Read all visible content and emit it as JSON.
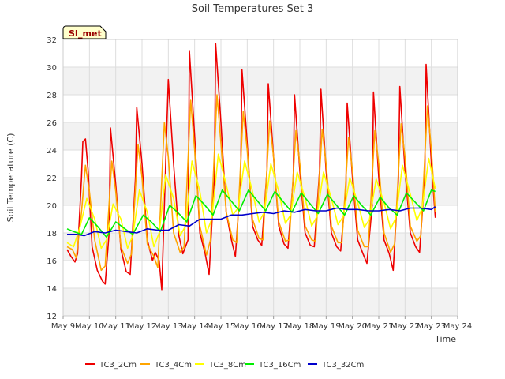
{
  "chart_data": {
    "type": "line",
    "title": "Soil Temperatures Set 3",
    "xlabel": "Time",
    "ylabel": "Soil Temperature (C)",
    "ylim": [
      12,
      32
    ],
    "yticks": [
      12,
      14,
      16,
      18,
      20,
      22,
      24,
      26,
      28,
      30,
      32
    ],
    "xlim": [
      9,
      24
    ],
    "xticks": [
      9,
      10,
      11,
      12,
      13,
      14,
      15,
      16,
      17,
      18,
      19,
      20,
      21,
      22,
      23,
      24
    ],
    "xtick_labels": [
      "May 9",
      "May 10",
      "May 11",
      "May 12",
      "May 13",
      "May 14",
      "May 15",
      "May 16",
      "May 17",
      "May 18",
      "May 19",
      "May 20",
      "May 21",
      "May 22",
      "May 23",
      "May 24"
    ],
    "grid": true,
    "banded_background": true,
    "legend_position": "bottom",
    "site_badge": "SI_met",
    "colors": {
      "TC3_2Cm": "#ee0000",
      "TC3_4Cm": "#ffa500",
      "TC3_8Cm": "#ffff00",
      "TC3_16Cm": "#00ee00",
      "TC3_32Cm": "#0000cc"
    },
    "series": [
      {
        "name": "TC3_2Cm",
        "x": [
          9.15,
          9.3,
          9.45,
          9.55,
          9.7,
          9.75,
          9.85,
          9.95,
          10.1,
          10.3,
          10.5,
          10.6,
          10.75,
          10.8,
          11.0,
          11.2,
          11.4,
          11.55,
          11.75,
          11.8,
          12.0,
          12.2,
          12.4,
          12.5,
          12.65,
          12.75,
          13.0,
          13.2,
          13.4,
          13.55,
          13.75,
          13.8,
          14.0,
          14.2,
          14.4,
          14.55,
          14.75,
          14.8,
          15.0,
          15.2,
          15.4,
          15.55,
          15.75,
          15.8,
          16.0,
          16.2,
          16.4,
          16.55,
          16.75,
          16.8,
          17.0,
          17.2,
          17.4,
          17.55,
          17.75,
          17.8,
          18.0,
          18.2,
          18.4,
          18.55,
          18.75,
          18.8,
          19.0,
          19.2,
          19.4,
          19.55,
          19.75,
          19.8,
          20.0,
          20.2,
          20.4,
          20.55,
          20.75,
          20.8,
          21.0,
          21.2,
          21.4,
          21.55,
          21.75,
          21.8,
          22.0,
          22.2,
          22.4,
          22.55,
          22.75,
          22.8,
          23.0,
          23.15
        ],
        "values": [
          16.8,
          16.3,
          15.9,
          16.5,
          22.0,
          24.6,
          24.8,
          22.5,
          17.0,
          15.3,
          14.5,
          14.3,
          18.0,
          25.6,
          21.5,
          16.8,
          15.2,
          15.0,
          22.0,
          27.1,
          23.0,
          17.5,
          16.0,
          16.6,
          16.0,
          13.9,
          29.1,
          23.0,
          17.8,
          16.5,
          17.5,
          31.2,
          25.0,
          18.0,
          16.5,
          15.0,
          22.0,
          31.7,
          26.0,
          19.5,
          17.5,
          16.3,
          22.0,
          29.8,
          24.5,
          18.5,
          17.5,
          17.1,
          22.5,
          28.8,
          23.5,
          18.5,
          17.2,
          16.9,
          22.0,
          28.0,
          22.5,
          18.0,
          17.1,
          17.0,
          22.5,
          28.4,
          22.5,
          18.0,
          17.0,
          16.7,
          21.0,
          27.4,
          22.0,
          17.5,
          16.5,
          15.8,
          20.0,
          28.2,
          22.0,
          17.5,
          16.5,
          15.3,
          22.0,
          28.6,
          22.5,
          18.0,
          17.0,
          16.6,
          22.0,
          30.2,
          23.0,
          19.1
        ]
      },
      {
        "name": "TC3_4Cm",
        "x": [
          9.15,
          9.35,
          9.5,
          9.7,
          9.85,
          10.0,
          10.2,
          10.45,
          10.6,
          10.85,
          11.0,
          11.2,
          11.45,
          11.6,
          11.85,
          12.0,
          12.2,
          12.45,
          12.6,
          12.85,
          13.0,
          13.2,
          13.45,
          13.6,
          13.85,
          14.0,
          14.2,
          14.45,
          14.6,
          14.85,
          15.0,
          15.2,
          15.45,
          15.6,
          15.85,
          16.0,
          16.2,
          16.45,
          16.6,
          16.85,
          17.0,
          17.2,
          17.45,
          17.6,
          17.85,
          18.0,
          18.2,
          18.45,
          18.6,
          18.85,
          19.0,
          19.2,
          19.45,
          19.6,
          19.85,
          20.0,
          20.2,
          20.45,
          20.6,
          20.85,
          21.0,
          21.2,
          21.45,
          21.6,
          21.85,
          22.0,
          22.2,
          22.45,
          22.6,
          22.85,
          23.0,
          23.15
        ],
        "values": [
          17.0,
          16.8,
          16.2,
          19.5,
          22.9,
          21.0,
          17.5,
          15.3,
          15.6,
          23.2,
          21.0,
          17.0,
          15.8,
          16.5,
          24.4,
          22.0,
          17.2,
          16.3,
          15.5,
          26.0,
          23.5,
          18.0,
          16.6,
          17.0,
          27.6,
          24.0,
          18.5,
          16.4,
          17.5,
          28.0,
          24.5,
          19.5,
          17.5,
          17.3,
          26.8,
          24.0,
          19.0,
          17.6,
          17.5,
          26.1,
          23.5,
          18.8,
          17.4,
          17.5,
          25.4,
          23.0,
          18.5,
          17.5,
          17.4,
          25.5,
          23.0,
          18.5,
          17.3,
          17.3,
          24.9,
          22.5,
          18.2,
          17.0,
          17.0,
          25.4,
          23.0,
          18.0,
          16.6,
          17.2,
          25.9,
          23.5,
          18.5,
          17.4,
          17.8,
          27.2,
          24.0,
          19.5
        ]
      },
      {
        "name": "TC3_8Cm",
        "x": [
          9.15,
          9.4,
          9.65,
          9.9,
          10.2,
          10.45,
          10.65,
          10.9,
          11.2,
          11.45,
          11.65,
          11.9,
          12.2,
          12.45,
          12.65,
          12.9,
          13.2,
          13.45,
          13.65,
          13.9,
          14.2,
          14.45,
          14.65,
          14.9,
          15.2,
          15.45,
          15.65,
          15.9,
          16.2,
          16.45,
          16.65,
          16.9,
          17.2,
          17.45,
          17.65,
          17.9,
          18.2,
          18.45,
          18.65,
          18.9,
          19.2,
          19.45,
          19.65,
          19.9,
          20.2,
          20.45,
          20.65,
          20.9,
          21.2,
          21.45,
          21.65,
          21.9,
          22.2,
          22.45,
          22.65,
          22.9,
          23.15
        ],
        "values": [
          17.3,
          17.0,
          18.5,
          20.5,
          19.0,
          16.9,
          17.5,
          20.1,
          19.0,
          16.9,
          17.8,
          21.1,
          19.5,
          17.0,
          18.0,
          22.2,
          20.5,
          17.8,
          18.5,
          23.2,
          21.0,
          18.0,
          19.0,
          23.7,
          21.5,
          19.3,
          19.8,
          23.2,
          21.0,
          18.8,
          19.5,
          23.0,
          21.0,
          18.7,
          19.3,
          22.4,
          20.5,
          18.5,
          19.2,
          22.4,
          20.5,
          18.6,
          19.2,
          22.0,
          20.2,
          18.4,
          19.0,
          21.9,
          20.2,
          18.3,
          19.1,
          22.9,
          20.8,
          18.9,
          19.8,
          23.4,
          21.2
        ]
      },
      {
        "name": "TC3_16Cm",
        "x": [
          9.15,
          9.4,
          9.7,
          10.0,
          10.3,
          10.65,
          11.0,
          11.35,
          11.65,
          12.05,
          12.35,
          12.7,
          13.05,
          13.35,
          13.7,
          14.05,
          14.35,
          14.7,
          15.05,
          15.35,
          15.7,
          16.05,
          16.35,
          16.7,
          17.05,
          17.35,
          17.7,
          18.05,
          18.35,
          18.7,
          19.05,
          19.35,
          19.7,
          20.05,
          20.35,
          20.7,
          21.05,
          21.35,
          21.7,
          22.05,
          22.35,
          22.7,
          23.0,
          23.15
        ],
        "values": [
          18.3,
          18.1,
          17.9,
          19.1,
          18.5,
          17.7,
          18.8,
          18.3,
          17.9,
          19.3,
          18.8,
          18.1,
          20.0,
          19.5,
          18.8,
          20.7,
          20.1,
          19.3,
          21.1,
          20.4,
          19.6,
          21.1,
          20.4,
          19.6,
          21.0,
          20.3,
          19.5,
          20.9,
          20.2,
          19.4,
          20.8,
          20.1,
          19.3,
          20.7,
          20.0,
          19.3,
          20.6,
          19.9,
          19.3,
          20.9,
          20.3,
          19.6,
          21.1,
          21.0
        ]
      },
      {
        "name": "TC3_32Cm",
        "x": [
          9.15,
          9.5,
          9.8,
          10.2,
          10.6,
          11.0,
          11.4,
          11.8,
          12.2,
          12.6,
          13.0,
          13.4,
          13.8,
          14.2,
          14.6,
          15.0,
          15.4,
          15.8,
          16.2,
          16.6,
          17.0,
          17.4,
          17.8,
          18.2,
          18.6,
          19.0,
          19.4,
          19.8,
          20.2,
          20.6,
          21.0,
          21.4,
          21.8,
          22.2,
          22.6,
          23.0,
          23.15
        ],
        "values": [
          17.9,
          17.9,
          17.8,
          18.1,
          18.0,
          18.2,
          18.1,
          18.0,
          18.3,
          18.2,
          18.2,
          18.6,
          18.5,
          19.0,
          19.0,
          19.0,
          19.3,
          19.3,
          19.4,
          19.5,
          19.4,
          19.6,
          19.5,
          19.7,
          19.6,
          19.6,
          19.8,
          19.7,
          19.7,
          19.6,
          19.6,
          19.7,
          19.6,
          19.8,
          19.8,
          19.7,
          19.9
        ]
      }
    ]
  }
}
